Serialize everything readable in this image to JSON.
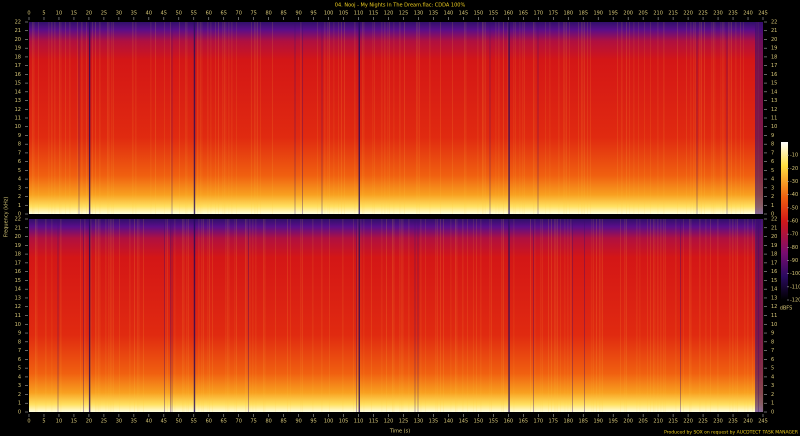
{
  "chart_data": {
    "type": "spectrogram",
    "title": "04. Nooj - My Nights In The Dream.flac: CDDA 100%",
    "xlabel": "Time (s)",
    "ylabel": "Frequency (kHz)",
    "xlim": [
      0,
      245
    ],
    "xticks": [
      0,
      5,
      10,
      15,
      20,
      25,
      30,
      35,
      40,
      45,
      50,
      55,
      60,
      65,
      70,
      75,
      80,
      85,
      90,
      95,
      100,
      105,
      110,
      115,
      120,
      125,
      130,
      135,
      140,
      145,
      150,
      155,
      160,
      165,
      170,
      175,
      180,
      185,
      190,
      195,
      200,
      205,
      210,
      215,
      220,
      225,
      230,
      235,
      240,
      245
    ],
    "ylim": [
      0,
      22
    ],
    "yticks": [
      0,
      1,
      2,
      3,
      4,
      5,
      6,
      7,
      8,
      9,
      10,
      11,
      12,
      13,
      14,
      15,
      16,
      17,
      18,
      19,
      20,
      21,
      22
    ],
    "colorbar": {
      "label": "dBFS",
      "lim": [
        -120,
        0
      ],
      "ticks": [
        -10,
        -20,
        -30,
        -40,
        -50,
        -60,
        -70,
        -80,
        -90,
        -100,
        -110,
        -120
      ]
    },
    "footer": "Produced by SOX on request by AUCDTECT TASK MANAGER"
  }
}
